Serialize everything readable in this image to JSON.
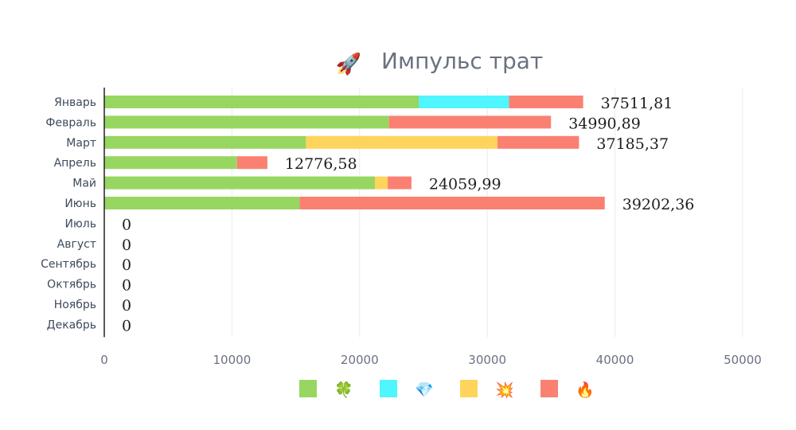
{
  "chart_data": {
    "type": "bar",
    "orientation": "horizontal",
    "stacked": true,
    "title": "Импульс трат",
    "title_icon": "🚀",
    "categories": [
      "Январь",
      "Февраль",
      "Март",
      "Апрель",
      "Май",
      "Июнь",
      "Июль",
      "Август",
      "Сентябрь",
      "Октябрь",
      "Ноябрь",
      "Декабрь"
    ],
    "series": [
      {
        "name": "🍀",
        "color": "#97d661",
        "values": [
          24650,
          22300,
          15800,
          10400,
          21200,
          15300,
          0,
          0,
          0,
          0,
          0,
          0
        ]
      },
      {
        "name": "💎",
        "color": "#4ff5ff",
        "values": [
          7050,
          0,
          0,
          0,
          0,
          0,
          0,
          0,
          0,
          0,
          0,
          0
        ]
      },
      {
        "name": "💥",
        "color": "#ffd45c",
        "values": [
          0,
          0,
          15000,
          0,
          1000,
          0,
          0,
          0,
          0,
          0,
          0,
          0
        ]
      },
      {
        "name": "🔥",
        "color": "#fa8172",
        "values": [
          5811.81,
          12690.89,
          6385.37,
          2376.58,
          1859.99,
          23902.36,
          0,
          0,
          0,
          0,
          0,
          0
        ]
      }
    ],
    "totals": [
      "37511,81",
      "34990,89",
      "37185,37",
      "12776,58",
      "24059,99",
      "39202,36",
      "0",
      "0",
      "0",
      "0",
      "0",
      "0"
    ],
    "xlim": [
      0,
      52000
    ],
    "xticks": [
      0,
      10000,
      20000,
      30000,
      40000,
      50000
    ],
    "xtick_labels": [
      "0",
      "10000",
      "20000",
      "30000",
      "40000",
      "50000"
    ],
    "grid": true,
    "legend_position": "bottom"
  }
}
